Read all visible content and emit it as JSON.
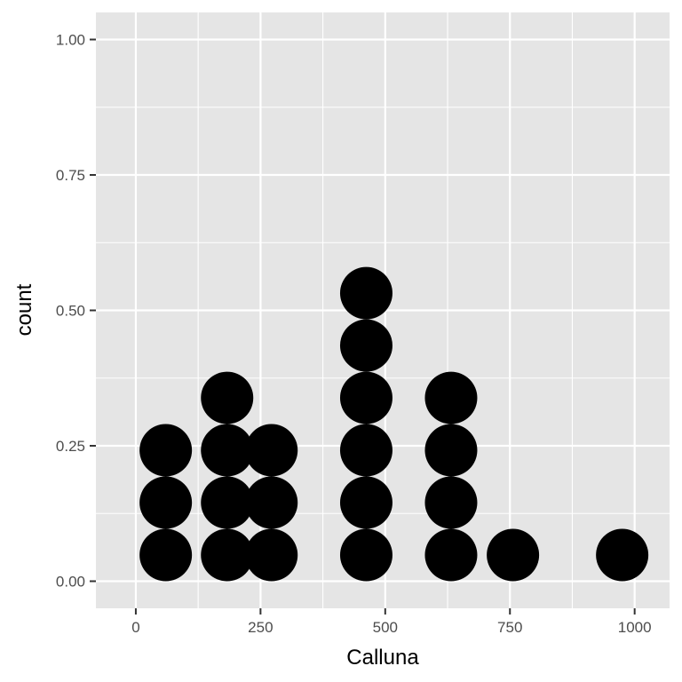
{
  "chart_data": {
    "type": "dotplot",
    "xlabel": "Calluna",
    "ylabel": "count",
    "xlim": [
      -80,
      1070
    ],
    "ylim": [
      -0.05,
      1.05
    ],
    "x_ticks": [
      0,
      250,
      500,
      750,
      1000
    ],
    "x_tick_labels": [
      "0",
      "250",
      "500",
      "750",
      "1000"
    ],
    "y_ticks": [
      0,
      0.25,
      0.5,
      0.75,
      1
    ],
    "y_tick_labels": [
      "0.00",
      "0.25",
      "0.50",
      "0.75",
      "1.00"
    ],
    "grid": true,
    "dot_diameter_data_units": 105,
    "stacks": [
      {
        "x": 60,
        "count": 3
      },
      {
        "x": 183,
        "count": 4
      },
      {
        "x": 272,
        "count": 3
      },
      {
        "x": 462,
        "count": 6
      },
      {
        "x": 632,
        "count": 4
      },
      {
        "x": 756,
        "count": 1
      },
      {
        "x": 975,
        "count": 1
      }
    ],
    "colors": {
      "panel": "#e5e5e5",
      "grid": "#ffffff",
      "dot": "#000000",
      "tick_text": "#4d4d4d"
    }
  }
}
